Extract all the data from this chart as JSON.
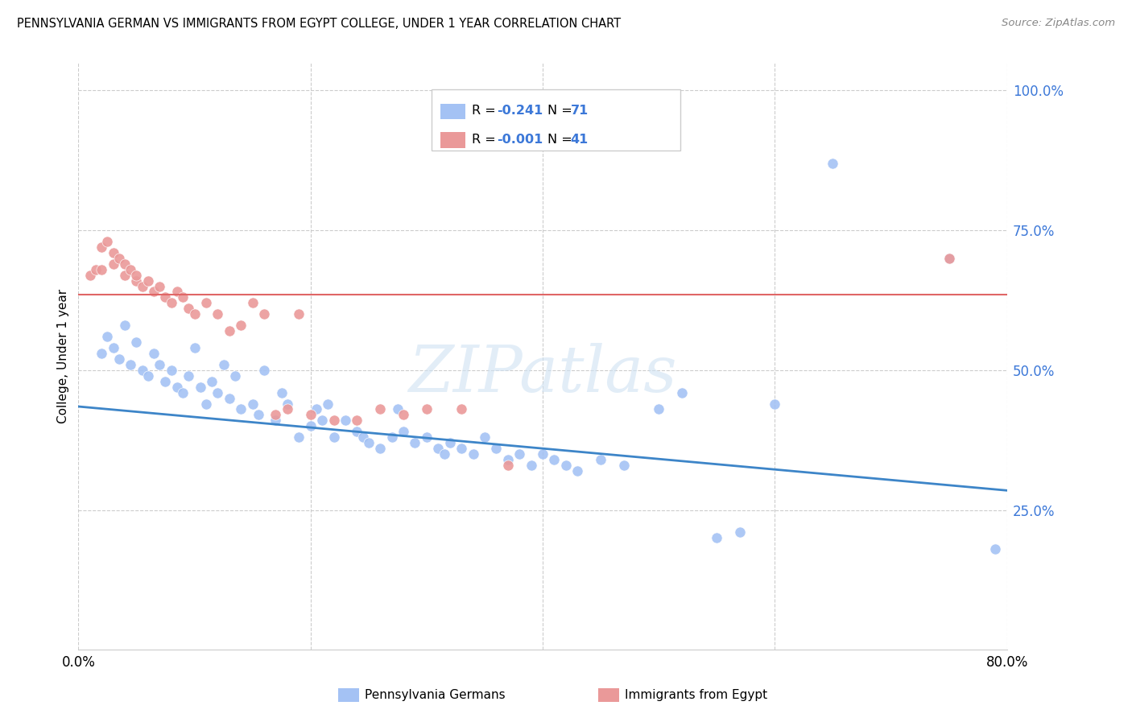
{
  "title": "PENNSYLVANIA GERMAN VS IMMIGRANTS FROM EGYPT COLLEGE, UNDER 1 YEAR CORRELATION CHART",
  "source": "Source: ZipAtlas.com",
  "ylabel": "College, Under 1 year",
  "legend_label1": "Pennsylvania Germans",
  "legend_label2": "Immigrants from Egypt",
  "color_blue": "#a4c2f4",
  "color_pink": "#ea9999",
  "color_blue_dark": "#3d85c8",
  "color_pink_line": "#e06666",
  "color_blue_text": "#3c78d8",
  "watermark": "ZIPatlas",
  "blue_scatter_x": [
    0.02,
    0.025,
    0.03,
    0.035,
    0.04,
    0.045,
    0.05,
    0.055,
    0.06,
    0.065,
    0.07,
    0.075,
    0.08,
    0.085,
    0.09,
    0.095,
    0.1,
    0.105,
    0.11,
    0.115,
    0.12,
    0.125,
    0.13,
    0.135,
    0.14,
    0.15,
    0.155,
    0.16,
    0.17,
    0.175,
    0.18,
    0.19,
    0.2,
    0.205,
    0.21,
    0.215,
    0.22,
    0.23,
    0.24,
    0.245,
    0.25,
    0.26,
    0.27,
    0.275,
    0.28,
    0.29,
    0.3,
    0.31,
    0.315,
    0.32,
    0.33,
    0.34,
    0.35,
    0.36,
    0.37,
    0.38,
    0.39,
    0.4,
    0.41,
    0.42,
    0.43,
    0.45,
    0.47,
    0.5,
    0.52,
    0.55,
    0.57,
    0.6,
    0.65,
    0.75,
    0.79
  ],
  "blue_scatter_y": [
    0.53,
    0.56,
    0.54,
    0.52,
    0.58,
    0.51,
    0.55,
    0.5,
    0.49,
    0.53,
    0.51,
    0.48,
    0.5,
    0.47,
    0.46,
    0.49,
    0.54,
    0.47,
    0.44,
    0.48,
    0.46,
    0.51,
    0.45,
    0.49,
    0.43,
    0.44,
    0.42,
    0.5,
    0.41,
    0.46,
    0.44,
    0.38,
    0.4,
    0.43,
    0.41,
    0.44,
    0.38,
    0.41,
    0.39,
    0.38,
    0.37,
    0.36,
    0.38,
    0.43,
    0.39,
    0.37,
    0.38,
    0.36,
    0.35,
    0.37,
    0.36,
    0.35,
    0.38,
    0.36,
    0.34,
    0.35,
    0.33,
    0.35,
    0.34,
    0.33,
    0.32,
    0.34,
    0.33,
    0.43,
    0.46,
    0.2,
    0.21,
    0.44,
    0.87,
    0.7,
    0.18
  ],
  "pink_scatter_x": [
    0.01,
    0.015,
    0.02,
    0.02,
    0.025,
    0.03,
    0.03,
    0.035,
    0.04,
    0.04,
    0.045,
    0.05,
    0.05,
    0.055,
    0.06,
    0.065,
    0.07,
    0.075,
    0.08,
    0.085,
    0.09,
    0.095,
    0.1,
    0.11,
    0.12,
    0.13,
    0.14,
    0.15,
    0.16,
    0.17,
    0.18,
    0.19,
    0.2,
    0.22,
    0.24,
    0.26,
    0.28,
    0.3,
    0.33,
    0.37,
    0.75
  ],
  "pink_scatter_y": [
    0.67,
    0.68,
    0.72,
    0.68,
    0.73,
    0.71,
    0.69,
    0.7,
    0.69,
    0.67,
    0.68,
    0.66,
    0.67,
    0.65,
    0.66,
    0.64,
    0.65,
    0.63,
    0.62,
    0.64,
    0.63,
    0.61,
    0.6,
    0.62,
    0.6,
    0.57,
    0.58,
    0.62,
    0.6,
    0.42,
    0.43,
    0.6,
    0.42,
    0.41,
    0.41,
    0.43,
    0.42,
    0.43,
    0.43,
    0.33,
    0.7
  ],
  "blue_line_x": [
    0.0,
    0.8
  ],
  "blue_line_y": [
    0.435,
    0.285
  ],
  "pink_line_x": [
    0.0,
    0.8
  ],
  "pink_line_y": [
    0.635,
    0.635
  ],
  "xlim": [
    0.0,
    0.8
  ],
  "ylim": [
    0.0,
    1.05
  ],
  "yticks": [
    0.25,
    0.5,
    0.75,
    1.0
  ],
  "xticks": [
    0.0,
    0.2,
    0.4,
    0.6,
    0.8
  ]
}
